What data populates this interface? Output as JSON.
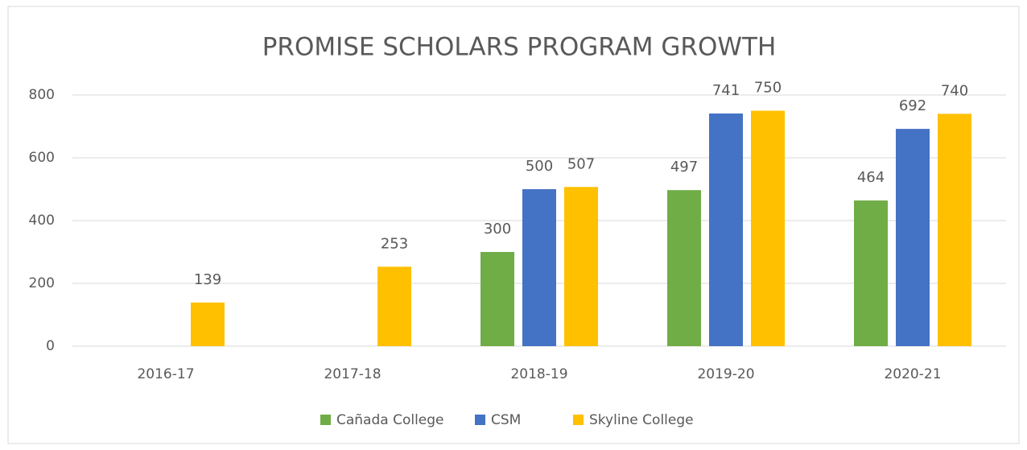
{
  "chart_data": {
    "type": "bar",
    "title": "PROMISE SCHOLARS PROGRAM GROWTH",
    "categories": [
      "2016-17",
      "2017-18",
      "2018-19",
      "2019-20",
      "2020-21"
    ],
    "series": [
      {
        "name": "Cañada College",
        "color": "#70ad47",
        "values": [
          null,
          null,
          300,
          497,
          464
        ]
      },
      {
        "name": "CSM",
        "color": "#4472c4",
        "values": [
          null,
          null,
          500,
          741,
          692
        ]
      },
      {
        "name": "Skyline College",
        "color": "#ffc000",
        "values": [
          139,
          253,
          507,
          750,
          740
        ]
      }
    ],
    "ylim": [
      0,
      800
    ],
    "yticks": [
      0,
      200,
      400,
      600,
      800
    ],
    "grid": true,
    "legend": "bottom"
  }
}
